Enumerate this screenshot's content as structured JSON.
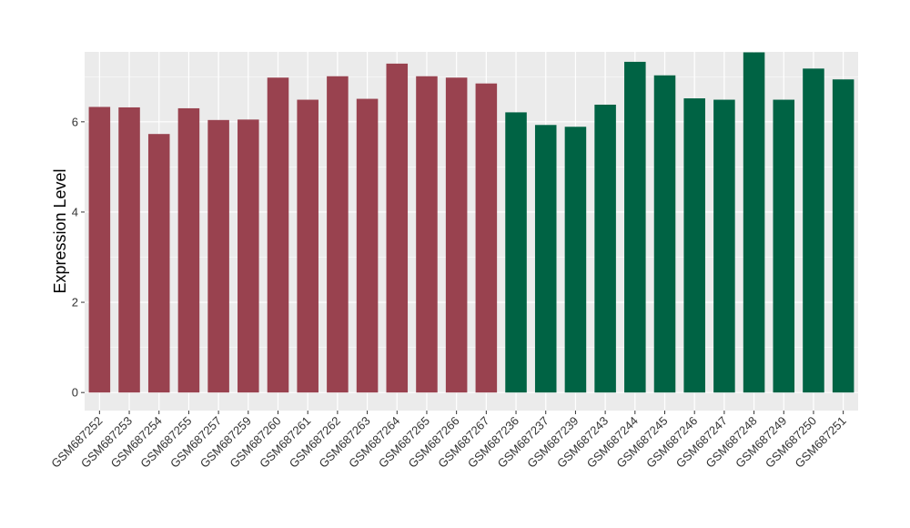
{
  "chart_data": {
    "type": "bar",
    "title": "",
    "xlabel": "",
    "ylabel": "Expression Level",
    "ylim": [
      -0.4,
      7.55
    ],
    "yticks": [
      0,
      2,
      4,
      6
    ],
    "grid": true,
    "legend": "none",
    "categories": [
      "GSM687252",
      "GSM687253",
      "GSM687254",
      "GSM687255",
      "GSM687257",
      "GSM687259",
      "GSM687260",
      "GSM687261",
      "GSM687262",
      "GSM687263",
      "GSM687264",
      "GSM687265",
      "GSM687266",
      "GSM687267",
      "GSM687236",
      "GSM687237",
      "GSM687239",
      "GSM687243",
      "GSM687244",
      "GSM687245",
      "GSM687246",
      "GSM687247",
      "GSM687248",
      "GSM687249",
      "GSM687250",
      "GSM687251"
    ],
    "values": [
      6.33,
      6.32,
      5.73,
      6.3,
      6.04,
      6.05,
      6.98,
      6.49,
      7.01,
      6.51,
      7.29,
      7.01,
      6.98,
      6.85,
      6.21,
      5.93,
      5.89,
      6.38,
      7.33,
      7.03,
      6.52,
      6.49,
      7.54,
      6.49,
      7.18,
      6.94
    ],
    "groups": [
      "a",
      "a",
      "a",
      "a",
      "a",
      "a",
      "a",
      "a",
      "a",
      "a",
      "a",
      "a",
      "a",
      "a",
      "b",
      "b",
      "b",
      "b",
      "b",
      "b",
      "b",
      "b",
      "b",
      "b",
      "b",
      "b"
    ],
    "group_colors": {
      "a": "#99424f",
      "b": "#006344"
    },
    "panel_background": "#ebebeb",
    "grid_color": "#ffffff"
  }
}
